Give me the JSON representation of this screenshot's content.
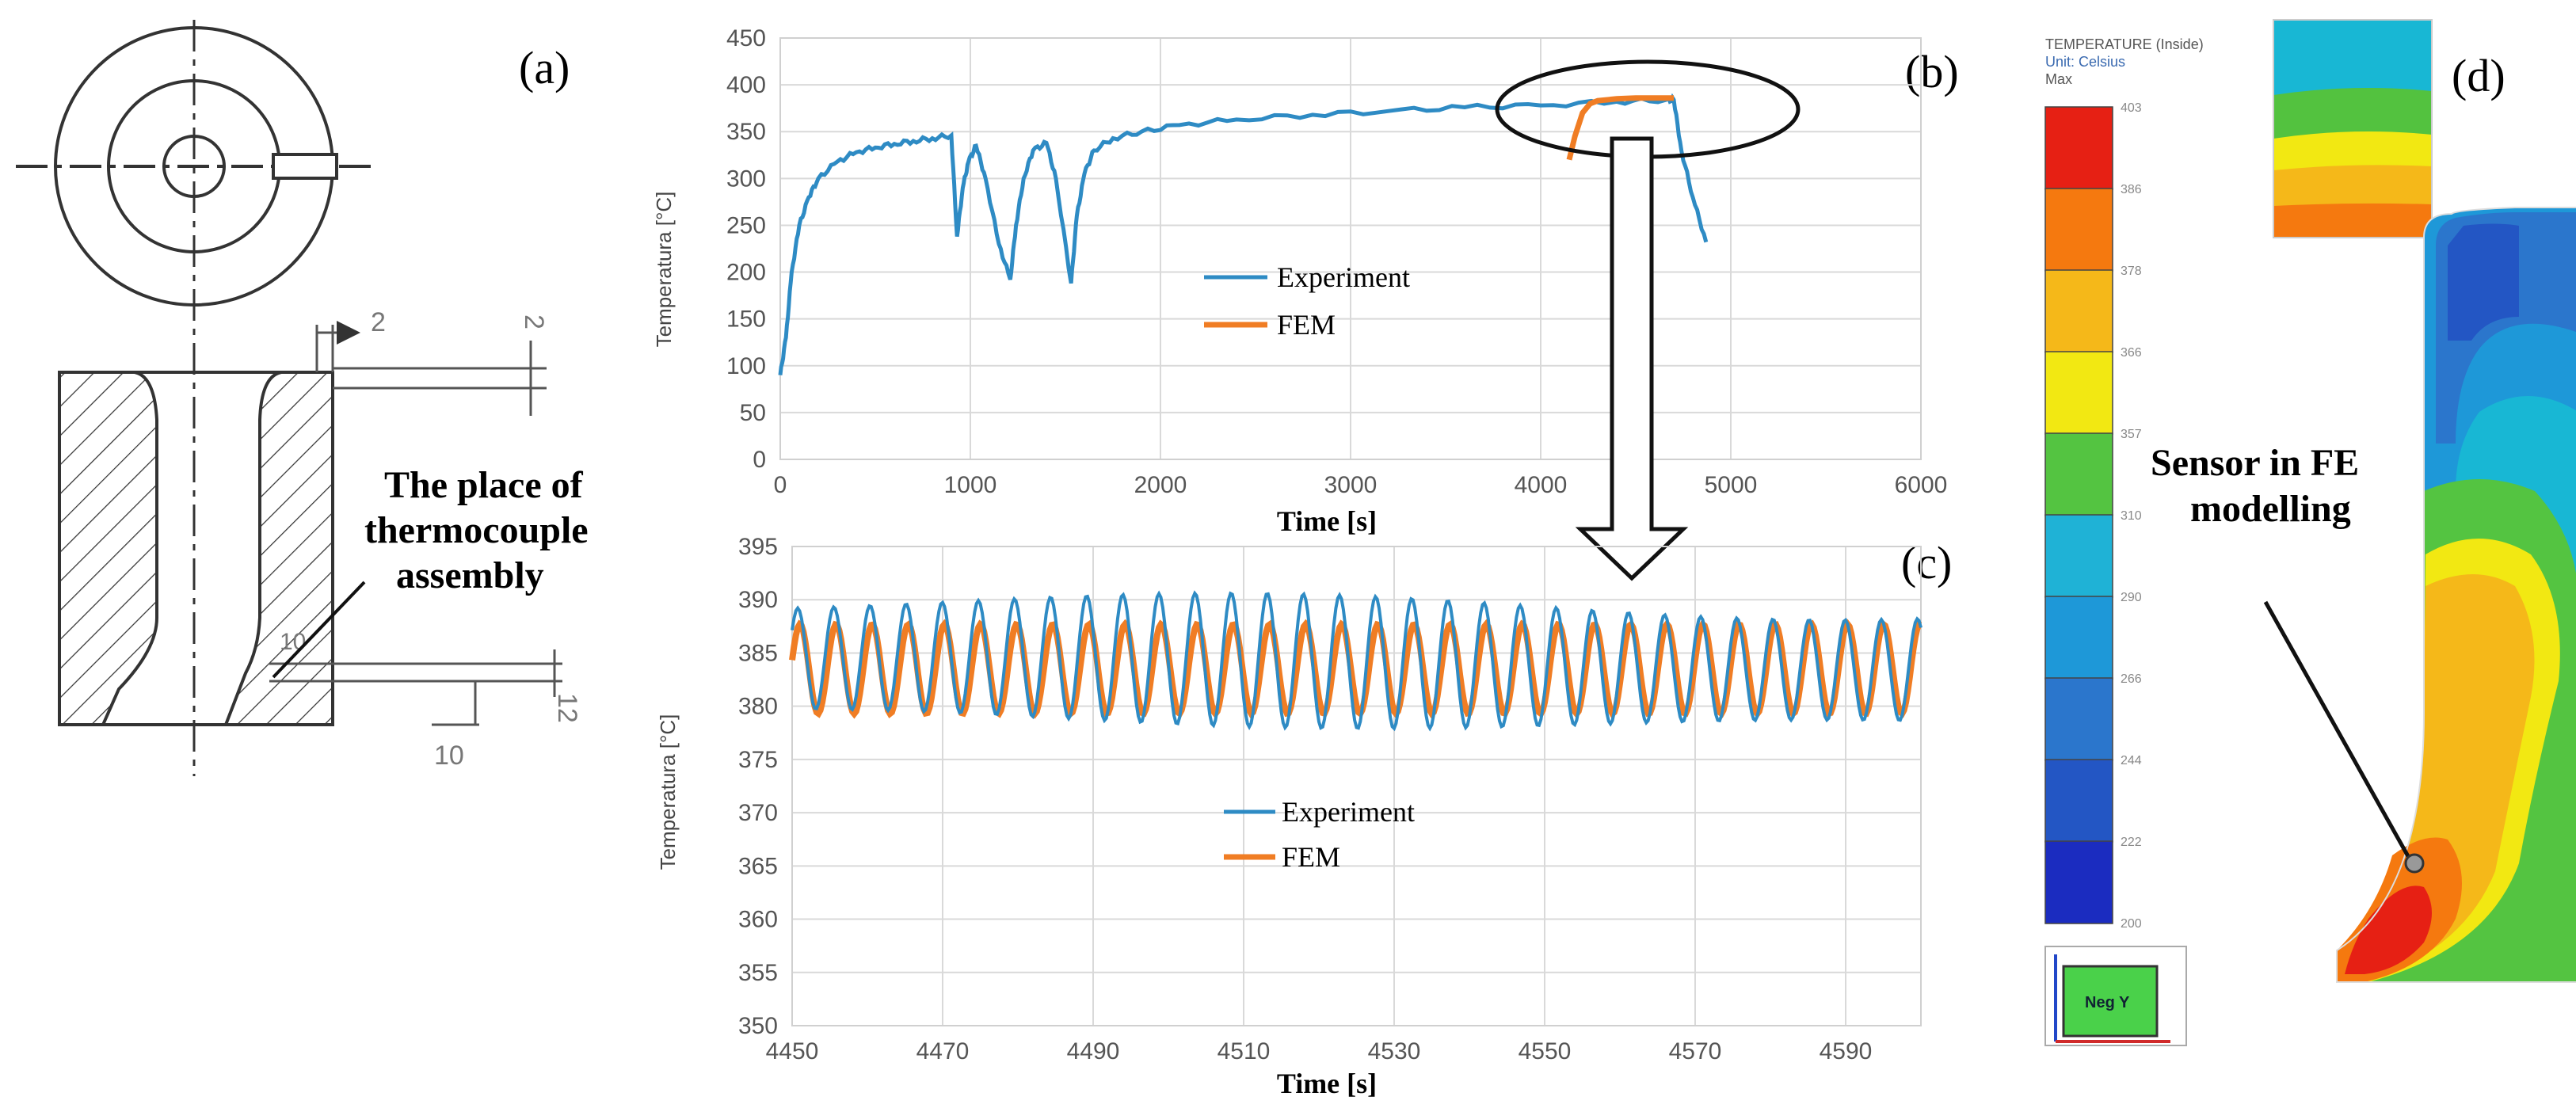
{
  "panels": {
    "a": "(a)",
    "b": "(b)",
    "c": "(c)",
    "d": "(d)"
  },
  "drawing": {
    "dims": [
      "2",
      "2",
      "10",
      "10",
      "12"
    ],
    "annotation": [
      "The place of",
      "thermocouple",
      "assembly"
    ]
  },
  "fe_model": {
    "legend_title": [
      "TEMPERATURE (Inside)",
      "Unit: Celsius",
      "Max"
    ],
    "legend_ticks": [
      "403",
      "386",
      "378",
      "366",
      "357",
      "310",
      "290",
      "266",
      "244",
      "222",
      "200"
    ],
    "view_label": "Neg Y",
    "sensor_label": [
      "Sensor in FE",
      "modelling"
    ],
    "colors": [
      "#e62014",
      "#f5790f",
      "#f5b819",
      "#f2e812",
      "#54c441",
      "#1fb2d6",
      "#1e98d8",
      "#2b76cc",
      "#2356c4",
      "#1b2cc0"
    ]
  },
  "chart_data": [
    {
      "type": "line",
      "panel": "b",
      "xlabel": "Time [s]",
      "ylabel": "Temperatura [°C]",
      "xlim": [
        0,
        6000
      ],
      "ylim": [
        0,
        450
      ],
      "xticks": [
        0,
        1000,
        2000,
        3000,
        4000,
        5000,
        6000
      ],
      "yticks": [
        0,
        50,
        100,
        150,
        200,
        250,
        300,
        350,
        400,
        450
      ],
      "grid": true,
      "legend": "center",
      "series": [
        {
          "name": "Experiment",
          "color": "#2e8bc4",
          "x": [
            0,
            30,
            60,
            100,
            150,
            200,
            300,
            400,
            500,
            600,
            700,
            800,
            900,
            930,
            960,
            990,
            1030,
            1080,
            1150,
            1210,
            1240,
            1280,
            1330,
            1400,
            1450,
            1530,
            1560,
            1600,
            1650,
            1750,
            1900,
            2100,
            2400,
            2800,
            3200,
            3600,
            4000,
            4400,
            4660,
            4700,
            4740,
            4800,
            4870
          ],
          "y": [
            90,
            130,
            200,
            250,
            280,
            300,
            318,
            328,
            333,
            337,
            340,
            343,
            346,
            238,
            290,
            318,
            335,
            300,
            230,
            192,
            250,
            300,
            330,
            338,
            300,
            188,
            260,
            305,
            330,
            343,
            350,
            357,
            363,
            368,
            372,
            376,
            378,
            382,
            384,
            384,
            330,
            280,
            232
          ]
        },
        {
          "name": "FEM",
          "color": "#f07d24",
          "x": [
            4150,
            4180,
            4220,
            4260,
            4300,
            4400,
            4500,
            4600,
            4700
          ],
          "y": [
            320,
            345,
            370,
            380,
            383,
            385,
            386,
            386,
            386
          ]
        }
      ]
    },
    {
      "type": "line",
      "panel": "c",
      "xlabel": "Time [s]",
      "ylabel": "Temperatura [°C]",
      "xlim": [
        4450,
        4600
      ],
      "ylim": [
        350,
        395
      ],
      "xticks": [
        4450,
        4470,
        4490,
        4510,
        4530,
        4550,
        4570,
        4590
      ],
      "yticks": [
        350,
        355,
        360,
        365,
        370,
        375,
        380,
        385,
        390,
        395
      ],
      "grid": true,
      "legend": "center",
      "series": [
        {
          "name": "Experiment",
          "color": "#2e8bc4",
          "period_s": 4.8,
          "center": 384,
          "amplitude": 5.5,
          "range": [
            378,
            390
          ]
        },
        {
          "name": "FEM",
          "color": "#f07d24",
          "period_s": 4.8,
          "center": 383.5,
          "amplitude": 4.2,
          "range": [
            379.5,
            388
          ]
        }
      ]
    }
  ]
}
